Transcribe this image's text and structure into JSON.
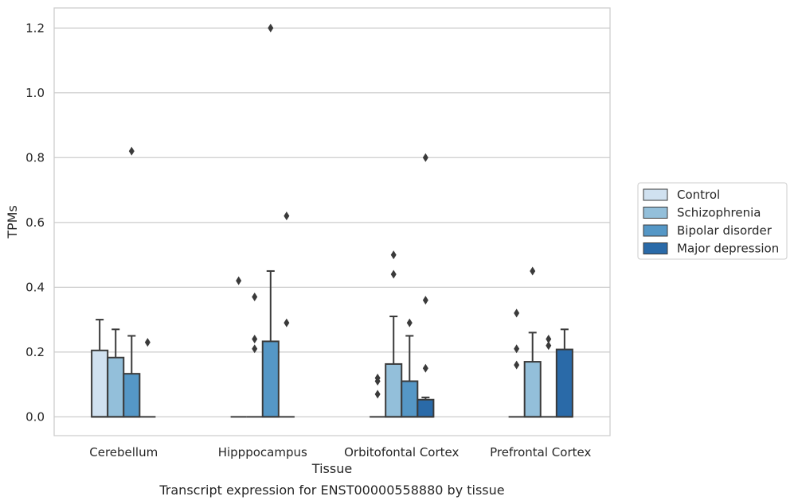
{
  "caption": "Transcript expression for ENST00000558880 by tissue",
  "chart_data": {
    "type": "box",
    "xlabel": "Tissue",
    "ylabel": "TPMs",
    "ylim": [
      -0.058,
      1.262
    ],
    "yticks": [
      0.0,
      0.2,
      0.4,
      0.6,
      0.8,
      1.0,
      1.2
    ],
    "ytick_labels": [
      "0.0",
      "0.2",
      "0.4",
      "0.6",
      "0.8",
      "1.0",
      "1.2"
    ],
    "grid": true,
    "legend_position": "right",
    "categories": [
      "Cerebellum",
      "Hipppocampus",
      "Orbitofontal Cortex",
      "Prefrontal Cortex"
    ],
    "series": [
      {
        "name": "Control",
        "color": "#d0e1f0",
        "boxes": [
          {
            "q1": 0.0,
            "median": 0.0,
            "q3": 0.205,
            "whislo": 0.0,
            "whishi": 0.3,
            "fliers": []
          },
          {
            "q1": 0.0,
            "median": 0.0,
            "q3": 0.0,
            "whislo": 0.0,
            "whishi": 0.0,
            "fliers": [
              0.42
            ]
          },
          {
            "q1": 0.0,
            "median": 0.0,
            "q3": 0.0,
            "whislo": 0.0,
            "whishi": 0.0,
            "fliers": [
              0.12,
              0.11,
              0.07
            ]
          },
          {
            "q1": 0.0,
            "median": 0.0,
            "q3": 0.0,
            "whislo": 0.0,
            "whishi": 0.0,
            "fliers": [
              0.32,
              0.21,
              0.16
            ]
          }
        ]
      },
      {
        "name": "Schizophrenia",
        "color": "#93bfda",
        "boxes": [
          {
            "q1": 0.0,
            "median": 0.0,
            "q3": 0.183,
            "whislo": 0.0,
            "whishi": 0.27,
            "fliers": []
          },
          {
            "q1": 0.0,
            "median": 0.0,
            "q3": 0.0,
            "whislo": 0.0,
            "whishi": 0.0,
            "fliers": [
              0.37,
              0.24,
              0.21
            ]
          },
          {
            "q1": 0.0,
            "median": 0.0,
            "q3": 0.163,
            "whislo": 0.0,
            "whishi": 0.31,
            "fliers": [
              0.5,
              0.44
            ]
          },
          {
            "q1": 0.0,
            "median": 0.0,
            "q3": 0.17,
            "whislo": 0.0,
            "whishi": 0.26,
            "fliers": [
              0.45
            ]
          }
        ]
      },
      {
        "name": "Bipolar disorder",
        "color": "#5597c6",
        "boxes": [
          {
            "q1": 0.0,
            "median": 0.0,
            "q3": 0.133,
            "whislo": 0.0,
            "whishi": 0.25,
            "fliers": [
              0.82
            ]
          },
          {
            "q1": 0.0,
            "median": 0.0,
            "q3": 0.233,
            "whislo": 0.0,
            "whishi": 0.45,
            "fliers": [
              1.2
            ]
          },
          {
            "q1": 0.0,
            "median": 0.0,
            "q3": 0.11,
            "whislo": 0.0,
            "whishi": 0.25,
            "fliers": [
              0.29
            ]
          },
          {
            "q1": 0.0,
            "median": 0.0,
            "q3": 0.0,
            "whislo": 0.0,
            "whishi": 0.0,
            "fliers": [
              0.24,
              0.22
            ]
          }
        ]
      },
      {
        "name": "Major depression",
        "color": "#2a6aa8",
        "boxes": [
          {
            "q1": 0.0,
            "median": 0.0,
            "q3": 0.0,
            "whislo": 0.0,
            "whishi": 0.0,
            "fliers": [
              0.23
            ]
          },
          {
            "q1": 0.0,
            "median": 0.0,
            "q3": 0.0,
            "whislo": 0.0,
            "whishi": 0.0,
            "fliers": [
              0.62,
              0.29
            ]
          },
          {
            "q1": 0.0,
            "median": 0.0,
            "q3": 0.053,
            "whislo": 0.0,
            "whishi": 0.06,
            "fliers": [
              0.8,
              0.36,
              0.15
            ]
          },
          {
            "q1": 0.0,
            "median": 0.0,
            "q3": 0.208,
            "whislo": 0.0,
            "whishi": 0.27,
            "fliers": []
          }
        ]
      }
    ]
  }
}
